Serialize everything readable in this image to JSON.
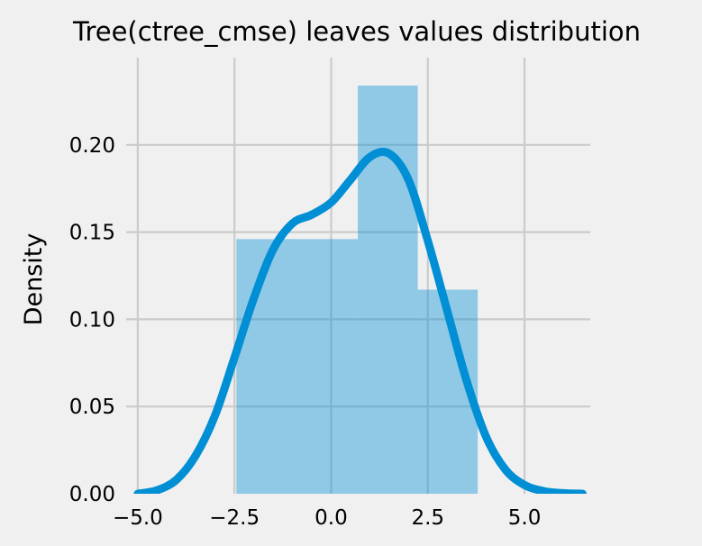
{
  "chart_data": {
    "type": "bar",
    "title": "Tree(ctree_cmse) leaves values distribution",
    "xlabel": "",
    "ylabel": "Density",
    "xlim": [
      -5.3,
      6.7
    ],
    "ylim": [
      0.0,
      0.25
    ],
    "grid": true,
    "x_ticks": [
      -5.0,
      -2.5,
      0.0,
      2.5,
      5.0
    ],
    "x_tick_labels": [
      "−5.0",
      "−2.5",
      "0.0",
      "2.5",
      "5.0"
    ],
    "y_ticks": [
      0.0,
      0.05,
      0.1,
      0.15,
      0.2
    ],
    "y_tick_labels": [
      "0.00",
      "0.05",
      "0.10",
      "0.15",
      "0.20"
    ],
    "histogram": {
      "bins": [
        {
          "x0": -2.45,
          "x1": 0.69,
          "density": 0.146
        },
        {
          "x0": 0.69,
          "x1": 2.24,
          "density": 0.234
        },
        {
          "x0": 2.24,
          "x1": 3.79,
          "density": 0.117
        }
      ],
      "color": "#008fd5",
      "opacity": 0.4
    },
    "kde": {
      "color": "#008fd5",
      "x": [
        -5.0,
        -4.5,
        -4.0,
        -3.5,
        -3.0,
        -2.5,
        -2.0,
        -1.5,
        -1.0,
        -0.5,
        0.0,
        0.5,
        1.0,
        1.5,
        2.0,
        2.5,
        3.0,
        3.5,
        4.0,
        4.5,
        5.0,
        5.5,
        6.0,
        6.5
      ],
      "y": [
        0.0,
        0.002,
        0.008,
        0.022,
        0.045,
        0.078,
        0.112,
        0.14,
        0.155,
        0.16,
        0.167,
        0.18,
        0.193,
        0.195,
        0.18,
        0.145,
        0.105,
        0.065,
        0.033,
        0.014,
        0.005,
        0.0015,
        0.0003,
        0.0
      ]
    }
  }
}
